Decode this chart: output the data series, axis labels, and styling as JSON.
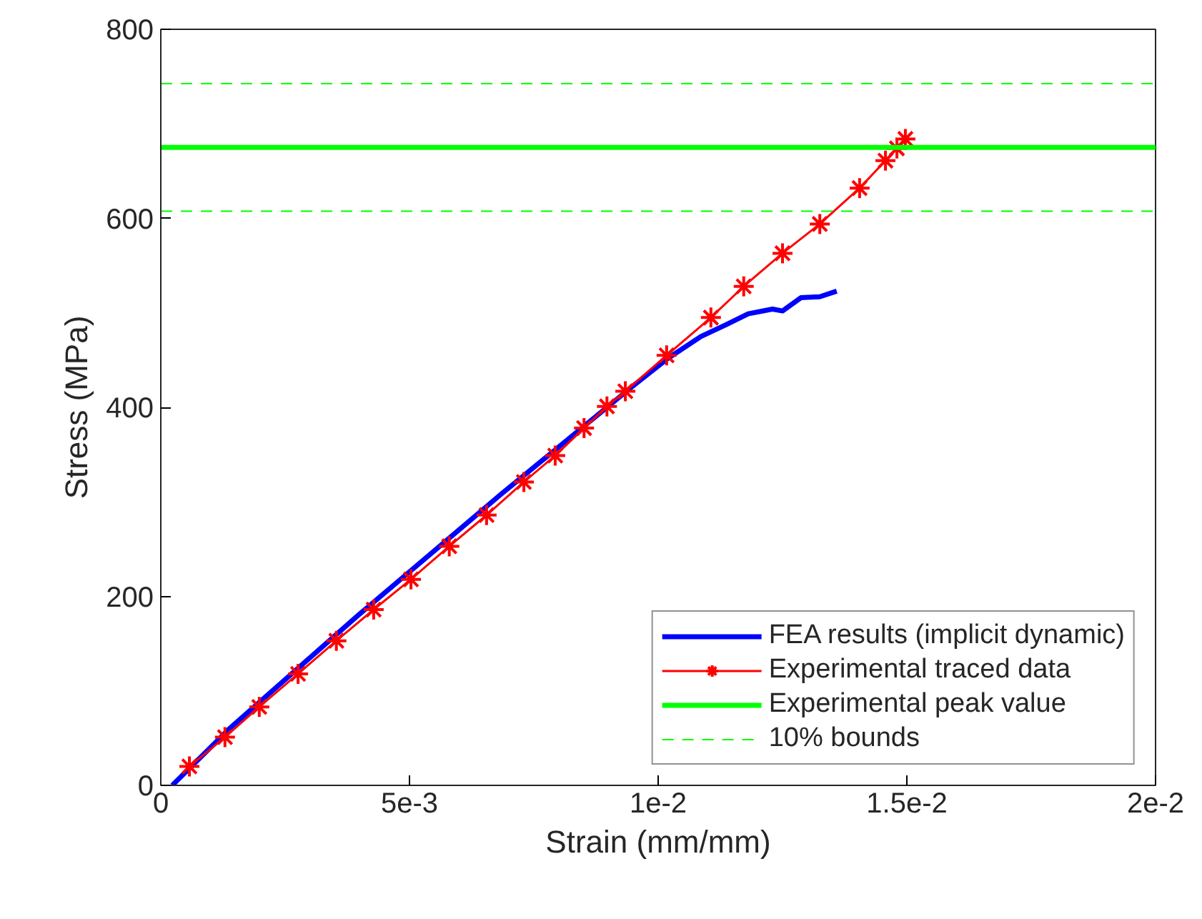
{
  "chart_data": {
    "type": "line",
    "xlabel": "Strain (mm/mm)",
    "ylabel": "Stress (MPa)",
    "xlim": [
      0,
      0.02
    ],
    "ylim": [
      0,
      800
    ],
    "xticks": [
      0,
      {
        "value": 0.005,
        "label": "5e-3"
      },
      {
        "value": 0.01,
        "label": "1e-2"
      },
      {
        "value": 0.015,
        "label": "1.5e-2"
      },
      {
        "value": 0.02,
        "label": "2e-2"
      }
    ],
    "yticks": [
      0,
      200,
      400,
      600,
      800
    ],
    "grid": false,
    "legend": "bottom right",
    "series": [
      {
        "name": "FEA results (implicit dynamic)",
        "color": "#0000ff",
        "marker": "none",
        "line_style": "solid",
        "x": [
          0.00023,
          0.00138,
          0.00397,
          0.00684,
          0.00948,
          0.0102,
          0.01086,
          0.01135,
          0.01181,
          0.0123,
          0.0125,
          0.01287,
          0.01325,
          0.01359
        ],
        "values": [
          0,
          60,
          180,
          308,
          422,
          452,
          475,
          487,
          499,
          504,
          502,
          516,
          517,
          523
        ]
      },
      {
        "name": "Experimental traced data",
        "color": "#ff0000",
        "marker": "cross",
        "line_style": "solid",
        "x": [
          0.000575,
          0.00129,
          0.00198,
          0.00276,
          0.00353,
          0.00428,
          0.00503,
          0.0058,
          0.00655,
          0.0073,
          0.00793,
          0.00851,
          0.00897,
          0.00934,
          0.01017,
          0.01106,
          0.01172,
          0.0125,
          0.01325,
          0.01405,
          0.01457,
          0.0148,
          0.01497
        ],
        "values": [
          20,
          51,
          83,
          118,
          153,
          186,
          218,
          253,
          286,
          321,
          349,
          378,
          401,
          417,
          455,
          495,
          528,
          563,
          594,
          632,
          661,
          674,
          684
        ]
      }
    ],
    "ref_lines": [
      {
        "axis": "y",
        "value": 675,
        "label": "Experimental peak value",
        "color": "#00ff00",
        "line_style": "solid"
      },
      {
        "axis": "y",
        "value": 607.5,
        "label": "10% bounds",
        "color": "#00ff00",
        "line_style": "dashed"
      },
      {
        "axis": "y",
        "value": 742.5,
        "color": "#00ff00",
        "line_style": "dashed"
      }
    ]
  }
}
